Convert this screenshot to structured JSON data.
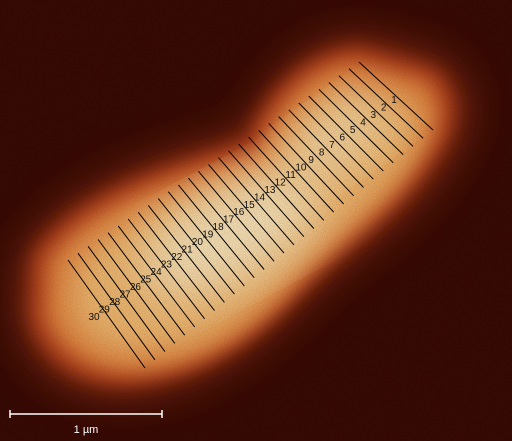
{
  "image": {
    "scale_bar_label": "1 µm",
    "colors": {
      "background": "#3a0a04",
      "rim": "#b8431a",
      "edge": "#e5843c",
      "body": "#f4ba70",
      "core": "#fde6ba",
      "line": "#000000",
      "label": "#111111",
      "scale_bar": "#ffffff"
    },
    "line_labels": [
      "1",
      "2",
      "3",
      "4",
      "5",
      "6",
      "7",
      "8",
      "9",
      "10",
      "11",
      "12",
      "13",
      "14",
      "15",
      "16",
      "17",
      "18",
      "19",
      "20",
      "21",
      "22",
      "23",
      "24",
      "25",
      "26",
      "27",
      "28",
      "29",
      "30"
    ]
  }
}
